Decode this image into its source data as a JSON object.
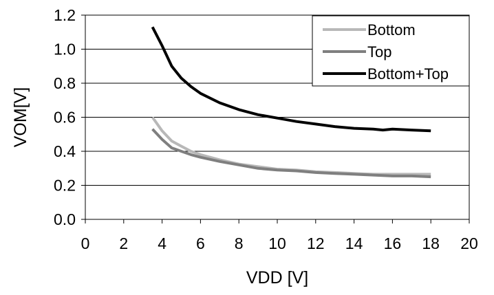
{
  "chart_data": {
    "type": "line",
    "title": "",
    "xlabel": "VDD [V]",
    "ylabel": "VOM[V]",
    "xlim": [
      0,
      20
    ],
    "ylim": [
      0.0,
      1.2
    ],
    "x_ticks": [
      "0",
      "2",
      "4",
      "6",
      "8",
      "10",
      "12",
      "14",
      "16",
      "18",
      "20"
    ],
    "y_ticks": [
      "0.0",
      "0.2",
      "0.4",
      "0.6",
      "0.8",
      "1.0",
      "1.2"
    ],
    "grid": "horizontal",
    "legend_position": "top-right",
    "series": [
      {
        "name": "Bottom",
        "color": "#b8b8b8",
        "x": [
          3.5,
          4,
          4.5,
          5,
          5.5,
          6,
          7,
          8,
          9,
          10,
          11,
          12,
          13,
          14,
          15,
          16,
          17,
          18
        ],
        "y": [
          0.6,
          0.52,
          0.46,
          0.43,
          0.4,
          0.38,
          0.35,
          0.325,
          0.31,
          0.295,
          0.29,
          0.28,
          0.275,
          0.27,
          0.265,
          0.265,
          0.265,
          0.265
        ]
      },
      {
        "name": "Top",
        "color": "#7f7f7f",
        "x": [
          3.5,
          4,
          4.5,
          5,
          5.5,
          6,
          7,
          8,
          9,
          10,
          11,
          12,
          13,
          14,
          15,
          16,
          17,
          18
        ],
        "y": [
          0.53,
          0.47,
          0.42,
          0.4,
          0.38,
          0.365,
          0.34,
          0.32,
          0.3,
          0.29,
          0.285,
          0.275,
          0.27,
          0.265,
          0.26,
          0.255,
          0.255,
          0.25
        ]
      },
      {
        "name": "Bottom+Top",
        "color": "#000000",
        "x": [
          3.5,
          4,
          4.5,
          5,
          5.5,
          6,
          7,
          8,
          9,
          10,
          11,
          12,
          13,
          14,
          15,
          15.5,
          16,
          17,
          18
        ],
        "y": [
          1.13,
          1.02,
          0.9,
          0.83,
          0.78,
          0.74,
          0.685,
          0.645,
          0.615,
          0.595,
          0.575,
          0.56,
          0.545,
          0.535,
          0.53,
          0.525,
          0.53,
          0.525,
          0.52
        ]
      }
    ]
  }
}
